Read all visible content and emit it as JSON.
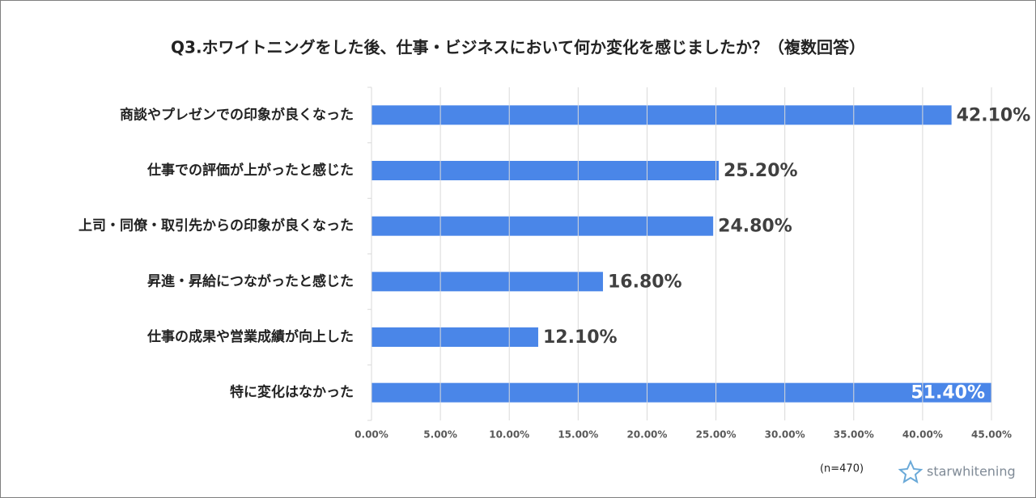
{
  "chart_data": {
    "type": "barh",
    "title": "Q3.ホワイトニングをした後、仕事・ビジネスにおいて何か変化を感じましたか？（複数回答）",
    "categories": [
      "商談やプレゼンでの印象が良くなった",
      "仕事での評価が上がったと感じた",
      "上司・同僚・取引先からの印象が良くなった",
      "昇進・昇給につながったと感じた",
      "仕事の成果や営業成績が向上した",
      "特に変化はなかった"
    ],
    "values": [
      42.1,
      25.2,
      24.8,
      16.8,
      12.1,
      51.4
    ],
    "value_labels": [
      "42.10%",
      "25.20%",
      "24.80%",
      "16.80%",
      "12.10%",
      "51.40%"
    ],
    "color": "#4a86e8",
    "xlim": [
      0,
      45
    ],
    "xticks": [
      {
        "value": 0,
        "label": "0.00%"
      },
      {
        "value": 5,
        "label": "5.00%"
      },
      {
        "value": 10,
        "label": "10.00%"
      },
      {
        "value": 15,
        "label": "15.00%"
      },
      {
        "value": 20,
        "label": "20.00%"
      },
      {
        "value": 25,
        "label": "25.00%"
      },
      {
        "value": 30,
        "label": "30.00%"
      },
      {
        "value": 35,
        "label": "35.00%"
      },
      {
        "value": 40,
        "label": "40.00%"
      },
      {
        "value": 45,
        "label": "45.00%"
      }
    ],
    "grid": true,
    "note": "(n=470)",
    "brand": "starwhitening"
  }
}
